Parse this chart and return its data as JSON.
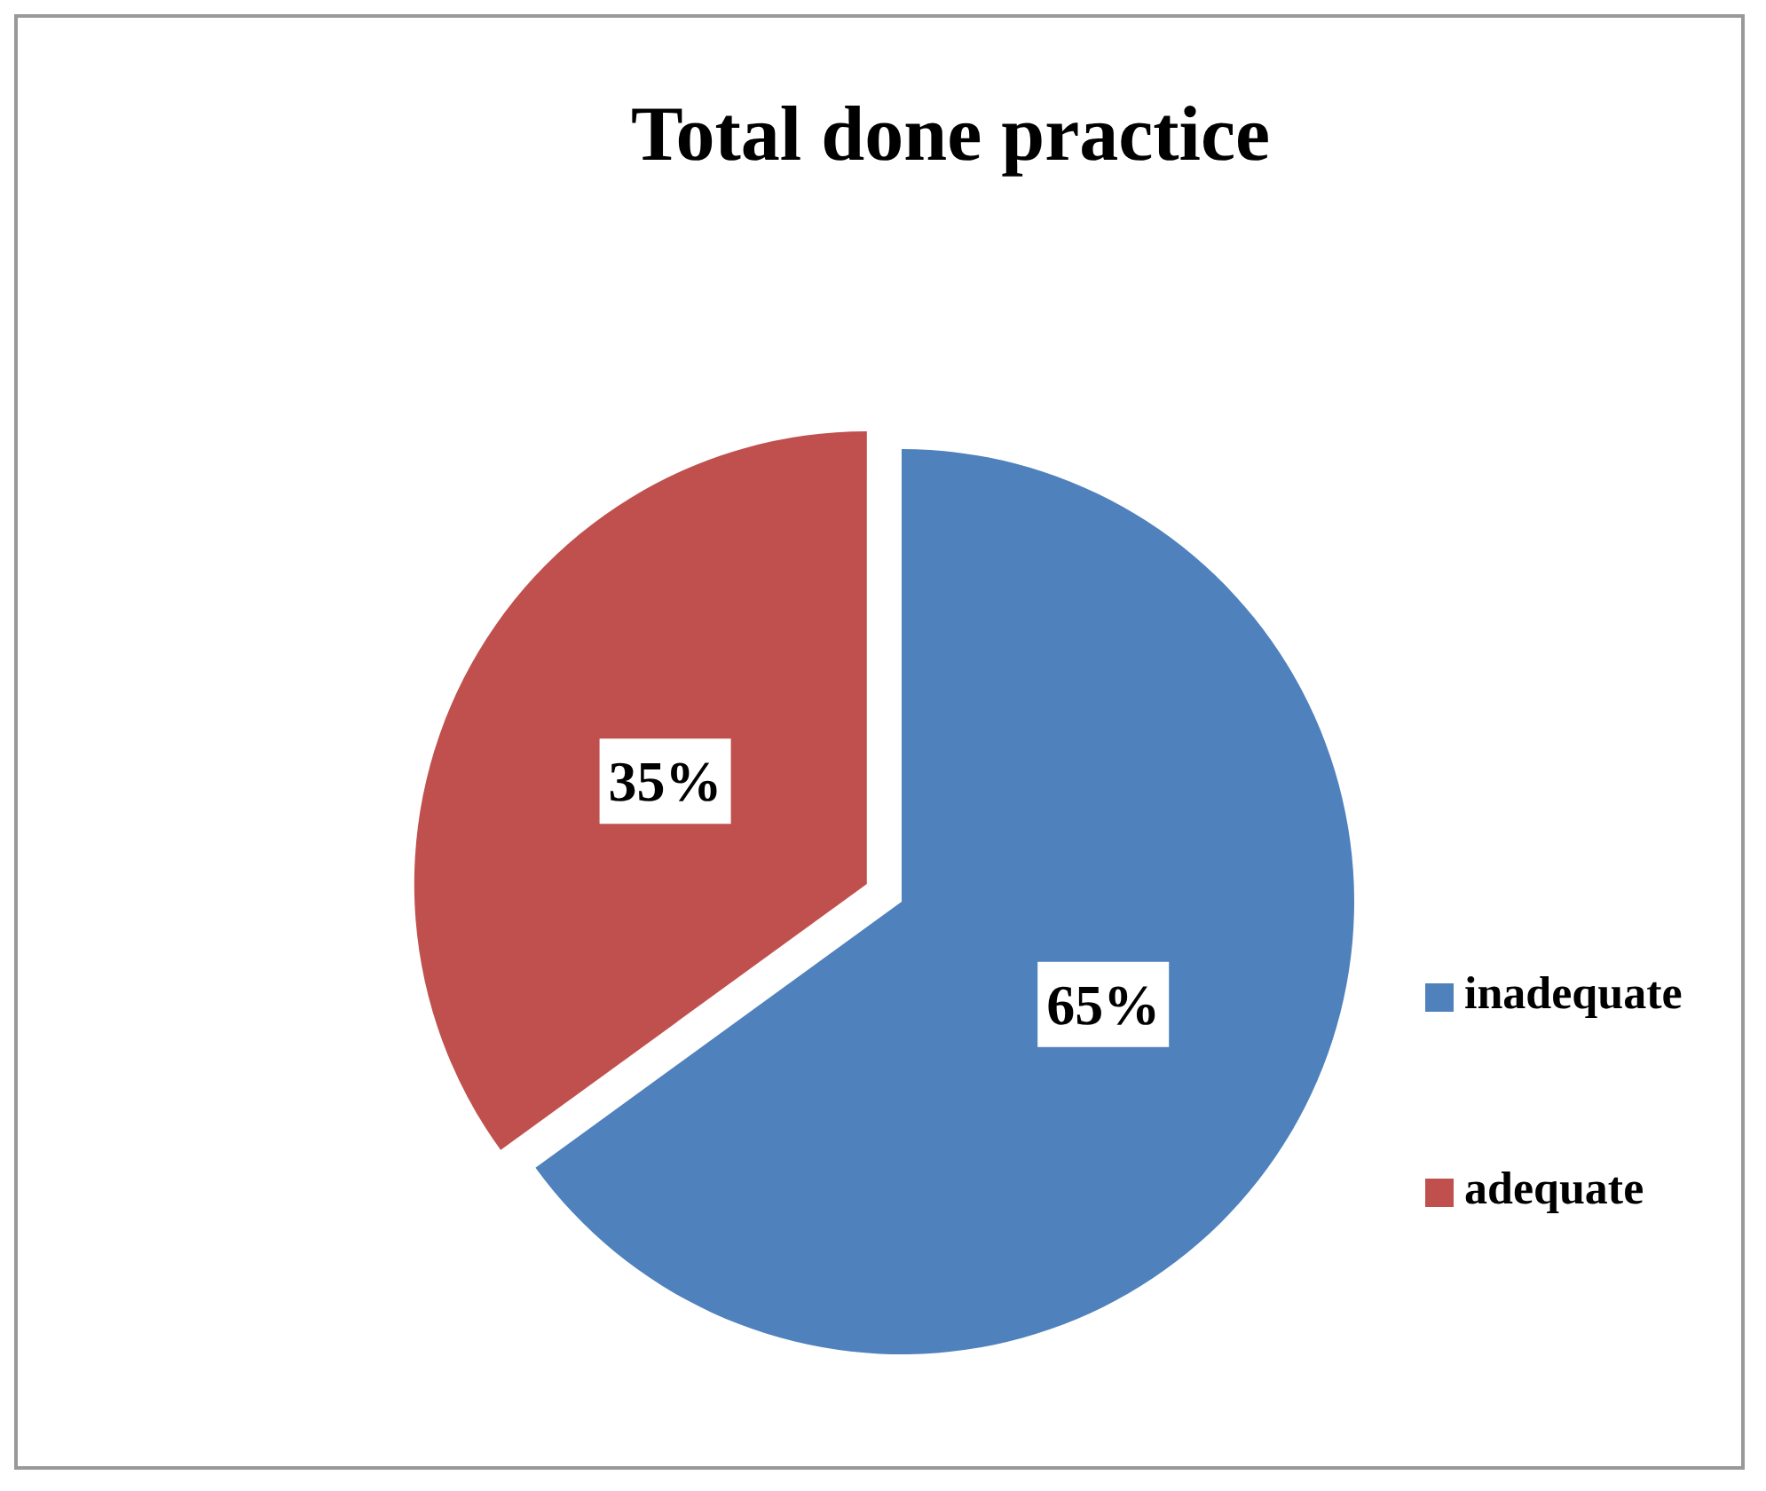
{
  "chart_data": {
    "type": "pie",
    "title": "Total done practice",
    "categories": [
      "inadequate",
      "adequate"
    ],
    "values": [
      65,
      35
    ],
    "colors": [
      "#4f81bd",
      "#c0504d"
    ],
    "value_labels": [
      "65%",
      "35%"
    ],
    "legend": "right"
  }
}
